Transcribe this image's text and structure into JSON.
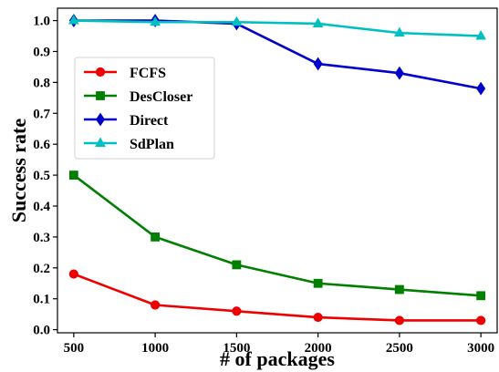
{
  "chart_data": {
    "type": "line",
    "title": "",
    "xlabel": "# of packages",
    "ylabel": "Success rate",
    "x": [
      500,
      1000,
      1500,
      2000,
      2500,
      3000
    ],
    "x_ticks": [
      "500",
      "1000",
      "1500",
      "2000",
      "2500",
      "3000"
    ],
    "y_ticks": [
      "0.0",
      "0.1",
      "0.2",
      "0.3",
      "0.4",
      "0.5",
      "0.6",
      "0.7",
      "0.8",
      "0.9",
      "1.0"
    ],
    "xlim": [
      400,
      3100
    ],
    "ylim": [
      -0.01,
      1.04
    ],
    "grid": false,
    "legend": "upper-left",
    "series": [
      {
        "name": "FCFS",
        "color": "#ee0000",
        "marker": "circle",
        "values": [
          0.18,
          0.08,
          0.06,
          0.04,
          0.03,
          0.03
        ]
      },
      {
        "name": "DesCloser",
        "color": "#007f00",
        "marker": "square",
        "values": [
          0.5,
          0.3,
          0.21,
          0.15,
          0.13,
          0.11
        ]
      },
      {
        "name": "Direct",
        "color": "#0000cc",
        "marker": "diamond",
        "values": [
          1.0,
          1.0,
          0.99,
          0.86,
          0.83,
          0.78
        ]
      },
      {
        "name": "SdPlan",
        "color": "#00bfbf",
        "marker": "triangle",
        "values": [
          1.0,
          0.995,
          0.995,
          0.99,
          0.96,
          0.95
        ]
      }
    ]
  }
}
